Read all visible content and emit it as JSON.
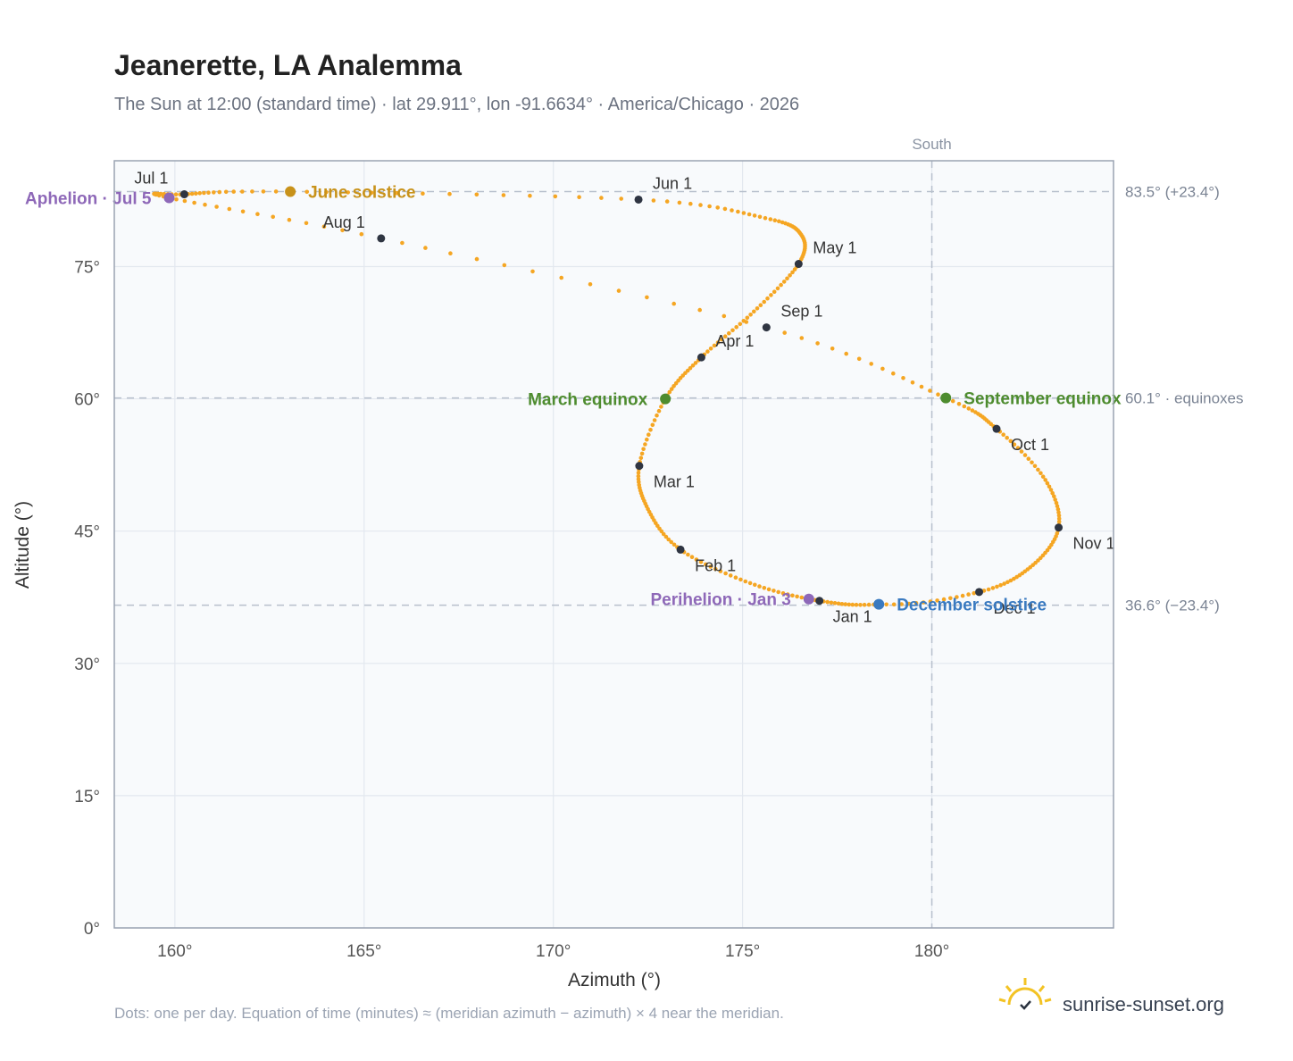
{
  "chart_data": {
    "type": "scatter",
    "title": "Jeanerette, LA Analemma",
    "subtitle": "The Sun at 12:00 (standard time) · lat 29.911°, lon -91.6634° · America/Chicago · 2026",
    "xlabel": "Azimuth (°)",
    "ylabel": "Altitude (°)",
    "xlim": [
      158.4,
      184.8
    ],
    "ylim": [
      0,
      87
    ],
    "xticks": [
      160,
      165,
      170,
      175,
      180
    ],
    "xtick_labels": [
      "160°",
      "165°",
      "170°",
      "175°",
      "180°"
    ],
    "yticks": [
      0,
      15,
      30,
      45,
      60,
      75
    ],
    "ytick_labels": [
      "0°",
      "15°",
      "30°",
      "45°",
      "60°",
      "75°"
    ],
    "grid": true,
    "south_azimuth": 180,
    "south_label": "South",
    "series_color": "#f5a623",
    "path": [
      {
        "date": "Jan 1",
        "az": 177.03,
        "alt": 37.1
      },
      {
        "date": "Jan 15",
        "az": 175.2,
        "alt": 39.1
      },
      {
        "date": "Feb 1",
        "az": 173.36,
        "alt": 42.9
      },
      {
        "date": "Feb 15",
        "az": 172.5,
        "alt": 47.5
      },
      {
        "date": "Mar 1",
        "az": 172.27,
        "alt": 52.4
      },
      {
        "date": "Mar 20",
        "az": 172.96,
        "alt": 60.0
      },
      {
        "date": "Apr 1",
        "az": 173.91,
        "alt": 64.7
      },
      {
        "date": "Apr 15",
        "az": 175.3,
        "alt": 69.9
      },
      {
        "date": "May 1",
        "az": 176.48,
        "alt": 75.3
      },
      {
        "date": "May 12",
        "az": 176.55,
        "alt": 78.6
      },
      {
        "date": "May 20",
        "az": 175.6,
        "alt": 80.5
      },
      {
        "date": "Jun 1",
        "az": 172.25,
        "alt": 82.6
      },
      {
        "date": "Jun 21",
        "az": 163.05,
        "alt": 83.5
      },
      {
        "date": "Jul 1",
        "az": 160.25,
        "alt": 83.2
      },
      {
        "date": "Jul 5",
        "az": 159.85,
        "alt": 82.8
      },
      {
        "date": "Aug 1",
        "az": 165.45,
        "alt": 78.2
      },
      {
        "date": "Sep 1",
        "az": 175.63,
        "alt": 68.1
      },
      {
        "date": "Sep 23",
        "az": 180.37,
        "alt": 60.1
      },
      {
        "date": "Oct 1",
        "az": 181.71,
        "alt": 56.6
      },
      {
        "date": "Oct 15",
        "az": 183.0,
        "alt": 50.8
      },
      {
        "date": "Nov 1",
        "az": 183.35,
        "alt": 45.4
      },
      {
        "date": "Nov 15",
        "az": 182.6,
        "alt": 40.9
      },
      {
        "date": "Dec 1",
        "az": 181.25,
        "alt": 38.1
      },
      {
        "date": "Dec 21",
        "az": 178.6,
        "alt": 36.7
      },
      {
        "date": "Jan 1",
        "az": 177.03,
        "alt": 37.1
      }
    ],
    "month_markers": [
      {
        "label": "Jan 1",
        "az": 177.03,
        "alt": 37.1,
        "pos": "below"
      },
      {
        "label": "Feb 1",
        "az": 173.36,
        "alt": 42.9,
        "pos": "below-right"
      },
      {
        "label": "Mar 1",
        "az": 172.27,
        "alt": 52.4,
        "pos": "below-right"
      },
      {
        "label": "Apr 1",
        "az": 173.91,
        "alt": 64.7,
        "pos": "above-right"
      },
      {
        "label": "May 1",
        "az": 176.48,
        "alt": 75.3,
        "pos": "above-right"
      },
      {
        "label": "Jun 1",
        "az": 172.25,
        "alt": 82.6,
        "pos": "above-right"
      },
      {
        "label": "Jul 1",
        "az": 160.25,
        "alt": 83.2,
        "pos": "above-left"
      },
      {
        "label": "Aug 1",
        "az": 165.45,
        "alt": 78.2,
        "pos": "above-left"
      },
      {
        "label": "Sep 1",
        "az": 175.63,
        "alt": 68.1,
        "pos": "above-right"
      },
      {
        "label": "Oct 1",
        "az": 181.71,
        "alt": 56.6,
        "pos": "below-right"
      },
      {
        "label": "Nov 1",
        "az": 183.35,
        "alt": 45.4,
        "pos": "below-right"
      },
      {
        "label": "Dec 1",
        "az": 181.25,
        "alt": 38.1,
        "pos": "below-right"
      }
    ],
    "events": [
      {
        "label": "June solstice",
        "az": 163.05,
        "alt": 83.5,
        "color": "#c8921a",
        "side": "right"
      },
      {
        "label": "December solstice",
        "az": 178.6,
        "alt": 36.7,
        "color": "#3a7ac0",
        "side": "right"
      },
      {
        "label": "March equinox",
        "az": 172.96,
        "alt": 60.0,
        "color": "#4e8c2f",
        "side": "left"
      },
      {
        "label": "September equinox",
        "az": 180.37,
        "alt": 60.1,
        "color": "#4e8c2f",
        "side": "right"
      },
      {
        "label": "Aphelion · Jul 5",
        "az": 159.85,
        "alt": 82.8,
        "color": "#8e68b8",
        "side": "left"
      },
      {
        "label": "Perihelion · Jan 3",
        "az": 176.75,
        "alt": 37.3,
        "color": "#8e68b8",
        "side": "left"
      }
    ],
    "reference_lines": [
      {
        "alt": 83.5,
        "label": "83.5° (+23.4°)"
      },
      {
        "alt": 60.1,
        "label": "60.1° · equinoxes"
      },
      {
        "alt": 36.6,
        "label": "36.6° (−23.4°)"
      }
    ]
  },
  "footer": {
    "note": "Dots: one per day. Equation of time (minutes) ≈ (meridian azimuth − azimuth) × 4 near the meridian.",
    "brand": "sunrise-sunset.org"
  }
}
